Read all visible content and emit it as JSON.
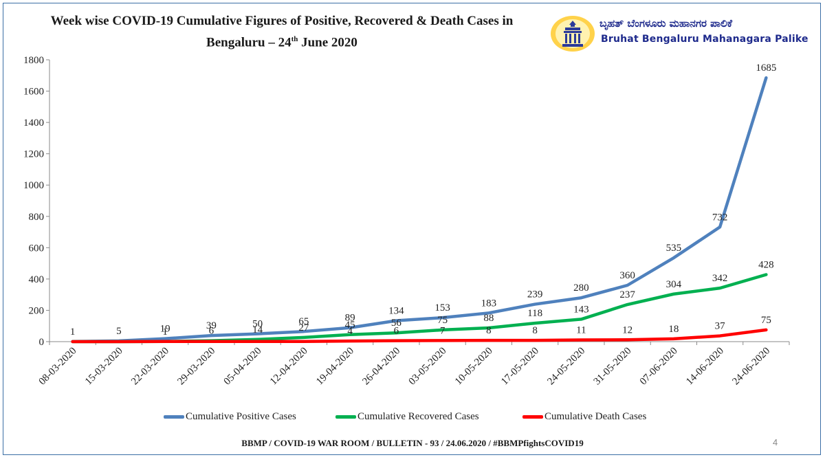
{
  "header": {
    "title_line1": "Week wise COVID-19 Cumulative Figures of Positive,  Recovered  & Death Cases in",
    "title_line2_pre": "Bengaluru – 24",
    "title_line2_sup": "th",
    "title_line2_post": " June 2020"
  },
  "logo": {
    "kannada_text": "ಬೃಹತ್ ಬೆಂಗಳೂರು ಮಹಾನಗರ ಪಾಲಿಕೆ",
    "english_text": "Bruhat Bengaluru Mahanagara Palike",
    "icon": "bbmp-emblem-icon"
  },
  "chart_data": {
    "type": "line",
    "categories": [
      "08-03-2020",
      "15-03-2020",
      "22-03-2020",
      "29-03-2020",
      "05-04-2020",
      "12-04-2020",
      "19-04-2020",
      "26-04-2020",
      "03-05-2020",
      "10-05-2020",
      "17-05-2020",
      "24-05-2020",
      "31-05-2020",
      "07-06-2020",
      "14-06-2020",
      "24-06-2020"
    ],
    "series": [
      {
        "name": "Cumulative Positive Cases",
        "color": "#4f81bd",
        "values": [
          1,
          5,
          19,
          39,
          50,
          65,
          89,
          134,
          153,
          183,
          239,
          280,
          360,
          535,
          732,
          1685
        ]
      },
      {
        "name": "Cumulative Recovered Cases",
        "color": "#00b050",
        "values": [
          0,
          0,
          1,
          6,
          14,
          27,
          45,
          56,
          75,
          88,
          118,
          143,
          237,
          304,
          342,
          428
        ]
      },
      {
        "name": "Cumulative Death Cases",
        "color": "#ff0000",
        "values": [
          0,
          0,
          1,
          1,
          1,
          1,
          4,
          6,
          7,
          8,
          8,
          11,
          12,
          18,
          37,
          75
        ]
      }
    ],
    "data_labels": {
      "positive": [
        "1",
        "5",
        "19",
        "39",
        "50",
        "65",
        "89",
        "134",
        "153",
        "183",
        "239",
        "280",
        "360",
        "535",
        "732",
        "1685"
      ],
      "recovered": [
        "",
        "",
        "1",
        "6",
        "14",
        "27",
        "45",
        "56",
        "75",
        "88",
        "118",
        "143",
        "237",
        "304",
        "342",
        "428"
      ],
      "death": [
        "",
        "",
        "",
        "",
        "",
        "",
        "4",
        "6",
        "7",
        "8",
        "8",
        "11",
        "12",
        "18",
        "37",
        "75"
      ]
    },
    "yticks": [
      "0",
      "200",
      "400",
      "600",
      "800",
      "1000",
      "1200",
      "1400",
      "1600",
      "1800"
    ],
    "ylim": [
      0,
      1800
    ],
    "grid": false,
    "legend_position": "bottom"
  },
  "footer": {
    "text": "BBMP / COVID-19 WAR ROOM / BULLETIN - 93 / 24.06.2020 / #BBMPfightsCOVID19",
    "page_number": "4"
  }
}
